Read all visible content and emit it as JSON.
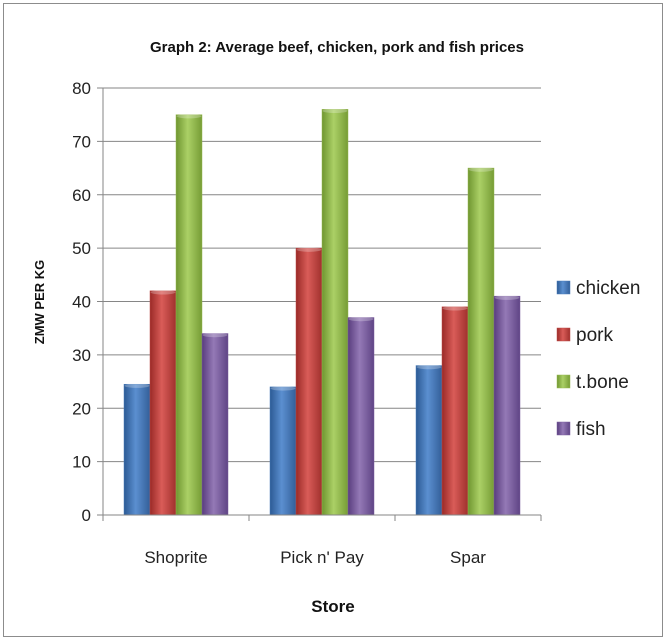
{
  "chart_data": {
    "type": "bar",
    "title": "Graph 2: Average beef, chicken, pork and fish prices",
    "xlabel": "Store",
    "ylabel": "ZMW PER KG",
    "categories": [
      "Shoprite",
      "Pick n' Pay",
      "Spar"
    ],
    "ylim": [
      0,
      80
    ],
    "yticks": [
      0,
      10,
      20,
      30,
      40,
      50,
      60,
      70,
      80
    ],
    "grid": true,
    "legend_position": "right",
    "series": [
      {
        "name": "chicken",
        "color": "#4a7ebb",
        "values": [
          24.5,
          24,
          28
        ]
      },
      {
        "name": "pork",
        "color": "#be4b48",
        "values": [
          42,
          50,
          39
        ]
      },
      {
        "name": "t.bone",
        "color": "#98b954",
        "values": [
          75,
          76,
          65
        ]
      },
      {
        "name": "fish",
        "color": "#7d60a0",
        "values": [
          34,
          37,
          41
        ]
      }
    ]
  }
}
